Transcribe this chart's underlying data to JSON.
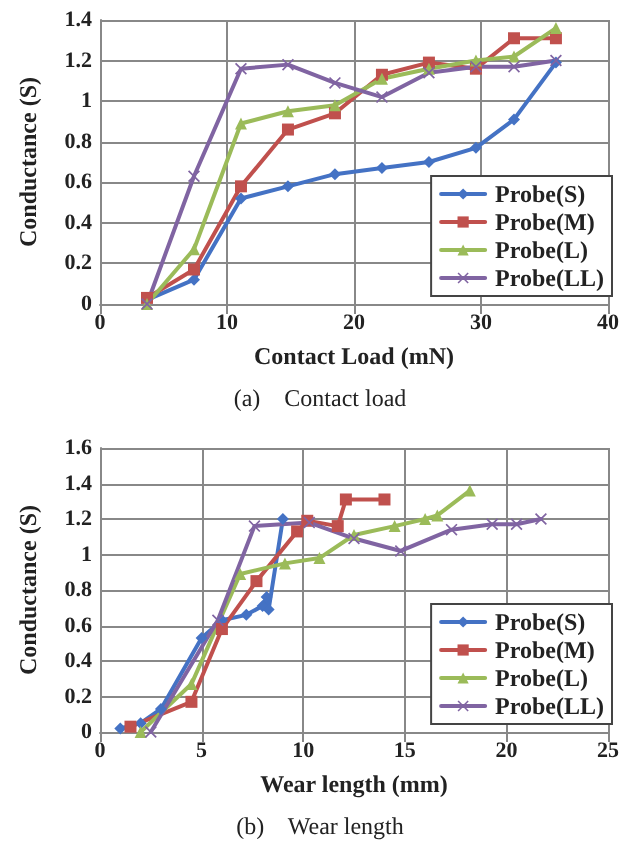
{
  "chart_data": [
    {
      "type": "line",
      "xlabel": "Contact Load (mN)",
      "ylabel": "Conductance (S)",
      "xlim": [
        0,
        40
      ],
      "xticks": [
        0,
        10,
        20,
        30,
        40
      ],
      "ylim": [
        0,
        1.4
      ],
      "yticks": [
        0,
        0.2,
        0.4,
        0.6,
        0.8,
        1,
        1.2,
        1.4
      ],
      "grid": true,
      "legend": "bottom right",
      "line_style": "solid",
      "annotations": [
        "(a)    Contact load"
      ],
      "x": [
        3.7,
        7.4,
        11.1,
        14.8,
        18.5,
        22.2,
        25.9,
        29.6,
        32.6,
        35.9
      ],
      "series": [
        {
          "name": "Probe(S)",
          "color": "#4472c4",
          "marker": "diamond",
          "values": [
            0.02,
            0.12,
            0.52,
            0.58,
            0.64,
            0.67,
            0.7,
            0.77,
            0.91,
            1.19
          ]
        },
        {
          "name": "Probe(M)",
          "color": "#c0504d",
          "marker": "square",
          "values": [
            0.03,
            0.17,
            0.58,
            0.86,
            0.94,
            1.13,
            1.19,
            1.16,
            1.31,
            1.31
          ]
        },
        {
          "name": "Probe(L)",
          "color": "#9bbb59",
          "marker": "triangle",
          "values": [
            0,
            0.27,
            0.89,
            0.95,
            0.98,
            1.11,
            1.16,
            1.2,
            1.22,
            1.36
          ]
        },
        {
          "name": "Probe(LL)",
          "color": "#8064a2",
          "marker": "cross",
          "values": [
            0,
            0.63,
            1.16,
            1.18,
            1.09,
            1.02,
            1.14,
            1.17,
            1.17,
            1.2
          ]
        }
      ]
    },
    {
      "type": "line",
      "xlabel": "Wear length (mm)",
      "ylabel": "Conductance (S)",
      "xlim": [
        0,
        25
      ],
      "xticks": [
        0,
        5,
        10,
        15,
        20,
        25
      ],
      "ylim": [
        0,
        1.6
      ],
      "yticks": [
        0,
        0.2,
        0.4,
        0.6,
        0.8,
        1,
        1.2,
        1.4,
        1.6
      ],
      "grid": true,
      "legend": "bottom right",
      "line_style": "solid",
      "annotations": [
        "(b)    Wear length"
      ],
      "series": [
        {
          "name": "Probe(S)",
          "color": "#4472c4",
          "marker": "diamond",
          "x": [
            1.0,
            2.0,
            3.0,
            5.0,
            6.0,
            7.2,
            8.0,
            8.2,
            8.3,
            9.0
          ],
          "values": [
            0.02,
            0.05,
            0.13,
            0.53,
            0.63,
            0.66,
            0.71,
            0.76,
            0.69,
            1.2
          ]
        },
        {
          "name": "Probe(M)",
          "color": "#c0504d",
          "marker": "square",
          "x": [
            1.5,
            4.5,
            6.0,
            7.7,
            9.7,
            10.2,
            11.7,
            12.1,
            14.0
          ],
          "values": [
            0.03,
            0.17,
            0.58,
            0.85,
            1.13,
            1.19,
            1.16,
            1.31,
            1.31
          ]
        },
        {
          "name": "Probe(L)",
          "color": "#9bbb59",
          "marker": "triangle",
          "x": [
            2.0,
            4.5,
            6.9,
            9.1,
            10.8,
            12.5,
            14.5,
            16.0,
            16.6,
            18.2
          ],
          "values": [
            0,
            0.27,
            0.89,
            0.95,
            0.98,
            1.11,
            1.16,
            1.2,
            1.22,
            1.36
          ]
        },
        {
          "name": "Probe(LL)",
          "color": "#8064a2",
          "marker": "cross",
          "x": [
            2.5,
            5.8,
            7.6,
            10.3,
            12.5,
            14.8,
            17.3,
            19.3,
            20.5,
            21.7
          ],
          "values": [
            0,
            0.63,
            1.16,
            1.18,
            1.09,
            1.02,
            1.14,
            1.17,
            1.17,
            1.2
          ]
        }
      ]
    }
  ]
}
